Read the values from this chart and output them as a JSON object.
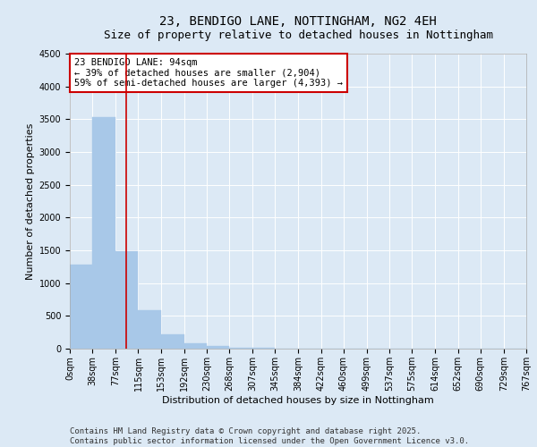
{
  "title_line1": "23, BENDIGO LANE, NOTTINGHAM, NG2 4EH",
  "title_line2": "Size of property relative to detached houses in Nottingham",
  "xlabel": "Distribution of detached houses by size in Nottingham",
  "ylabel": "Number of detached properties",
  "bar_color": "#a8c8e8",
  "bar_edge_color": "#a8c8e8",
  "vline_color": "#cc0000",
  "vline_x": 94,
  "annotation_text": "23 BENDIGO LANE: 94sqm\n← 39% of detached houses are smaller (2,904)\n59% of semi-detached houses are larger (4,393) →",
  "annotation_box_color": "#cc0000",
  "annotation_text_color": "#000000",
  "annotation_bg_color": "#ffffff",
  "bin_edges": [
    0,
    38,
    77,
    115,
    153,
    192,
    230,
    268,
    307,
    345,
    384,
    422,
    460,
    499,
    537,
    575,
    614,
    652,
    690,
    729,
    767
  ],
  "bar_heights": [
    1280,
    3530,
    1490,
    590,
    215,
    80,
    35,
    18,
    10,
    6,
    4,
    3,
    2,
    2,
    1,
    1,
    1,
    0,
    0,
    0
  ],
  "ylim": [
    0,
    4500
  ],
  "yticks": [
    0,
    500,
    1000,
    1500,
    2000,
    2500,
    3000,
    3500,
    4000,
    4500
  ],
  "background_color": "#dce9f5",
  "plot_bg_color": "#dce9f5",
  "grid_color": "#ffffff",
  "footer_line1": "Contains HM Land Registry data © Crown copyright and database right 2025.",
  "footer_line2": "Contains public sector information licensed under the Open Government Licence v3.0.",
  "title_fontsize": 10,
  "subtitle_fontsize": 9,
  "axis_label_fontsize": 8,
  "tick_fontsize": 7,
  "annot_fontsize": 7.5,
  "footer_fontsize": 6.5
}
